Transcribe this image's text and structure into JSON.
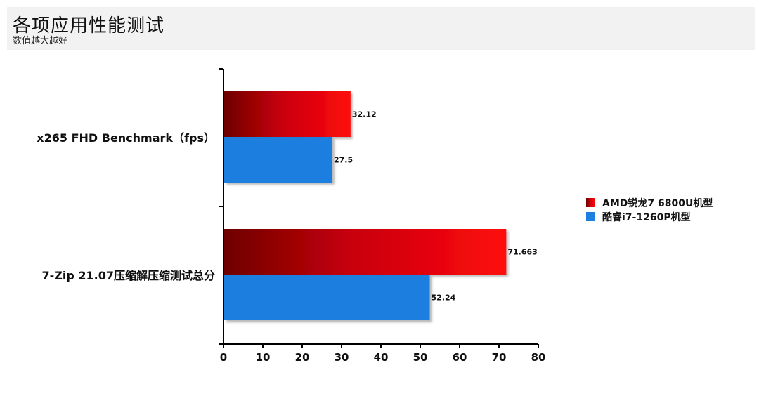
{
  "header": {
    "title": "各项应用性能测试",
    "subtitle": "数值越大越好"
  },
  "chart_data": {
    "type": "bar",
    "orientation": "horizontal",
    "categories": [
      "x265 FHD Benchmark（fps）",
      "7-Zip 21.07压缩解压缩测试总分"
    ],
    "series": [
      {
        "name": "AMD锐龙7 6800U机型",
        "values": [
          32.12,
          71.663
        ],
        "color": "#e8000d"
      },
      {
        "name": "酷睿i7-1260P机型",
        "values": [
          27.5,
          52.24
        ],
        "color": "#1f7fe0"
      }
    ],
    "xlim": [
      0,
      80
    ],
    "xticks": [
      0,
      10,
      20,
      30,
      40,
      50,
      60,
      70,
      80
    ],
    "grid": false,
    "legend_position": "right"
  }
}
